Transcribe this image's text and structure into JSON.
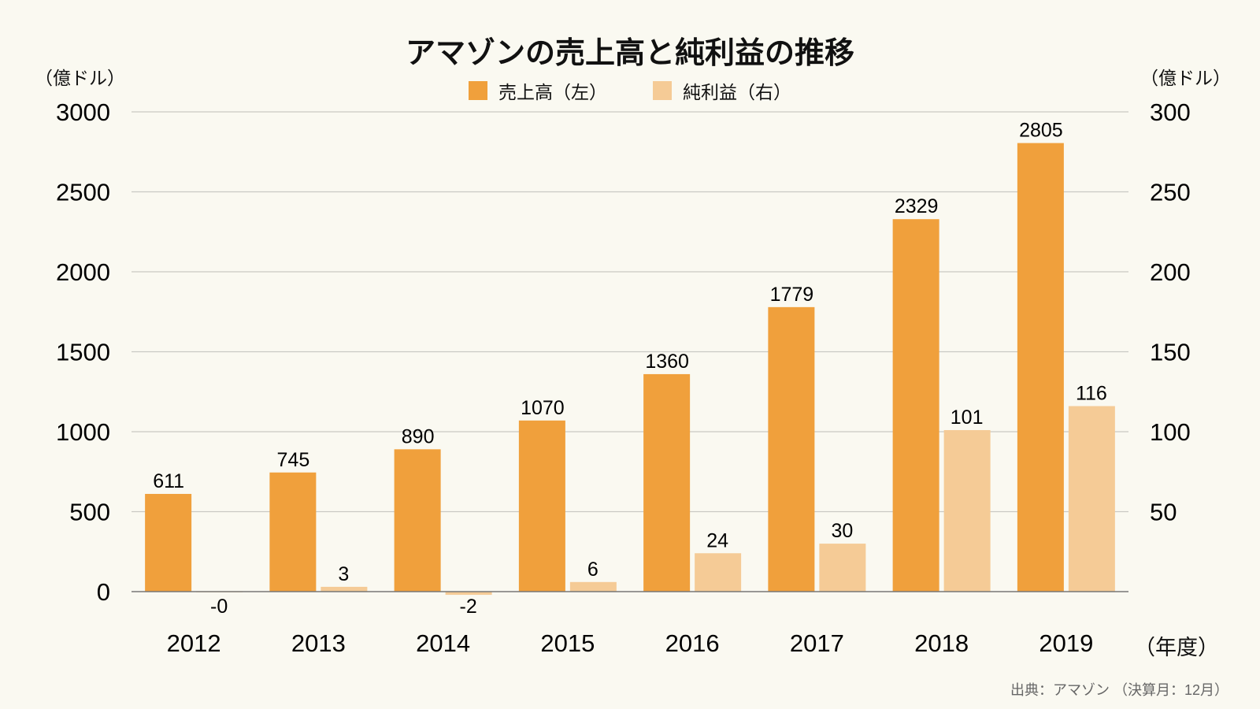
{
  "chart_data": {
    "type": "bar",
    "title": "アマゾンの売上高と純利益の推移",
    "ylabel_left": "（億ドル）",
    "ylabel_right": "（億ドル）",
    "xlabel": "（年度）",
    "categories": [
      "2012",
      "2013",
      "2014",
      "2015",
      "2016",
      "2017",
      "2018",
      "2019"
    ],
    "series": [
      {
        "name": "売上高（左）",
        "axis": "left",
        "color": "#f0a03c",
        "values": [
          611,
          745,
          890,
          1070,
          1360,
          1779,
          2329,
          2805
        ],
        "labels": [
          "611",
          "745",
          "890",
          "1070",
          "1360",
          "1779",
          "2329",
          "2805"
        ]
      },
      {
        "name": "純利益（右）",
        "axis": "right",
        "color": "#f5cb96",
        "values": [
          -0.4,
          3,
          -2,
          6,
          24,
          30,
          101,
          116
        ],
        "labels": [
          "-0",
          "3",
          "-2",
          "6",
          "24",
          "30",
          "101",
          "116"
        ]
      }
    ],
    "ylim_left": [
      0,
      3000
    ],
    "ylim_right": [
      0,
      300
    ],
    "yticks_left": [
      "0",
      "500",
      "1000",
      "1500",
      "2000",
      "2500",
      "3000"
    ],
    "yticks_right": [
      "50",
      "100",
      "150",
      "200",
      "250",
      "300"
    ],
    "grid": true,
    "legend": "top-center"
  },
  "source": "出典：アマゾン （決算月：12月）"
}
